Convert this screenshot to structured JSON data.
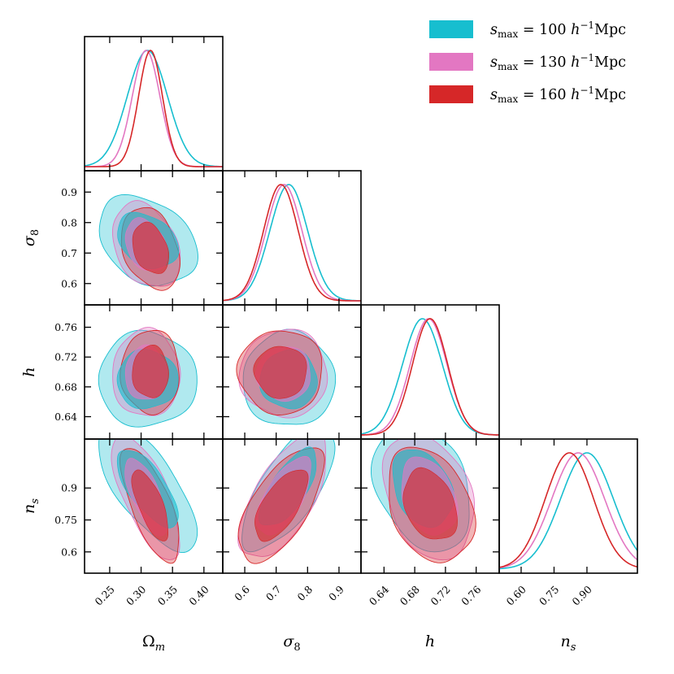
{
  "chart_data": {
    "type": "corner",
    "parameters": [
      {
        "key": "Om",
        "label": "Ωm",
        "label_parts": [
          "Ω",
          "m"
        ],
        "range": [
          0.21,
          0.43
        ],
        "ticks": [
          0.25,
          0.3,
          0.35,
          0.4
        ],
        "tick_labels": [
          "0.25",
          "0.30",
          "0.35",
          "0.40"
        ]
      },
      {
        "key": "s8",
        "label": "σ8",
        "label_parts": [
          "σ",
          "8"
        ],
        "range": [
          0.53,
          0.97
        ],
        "ticks": [
          0.6,
          0.7,
          0.8,
          0.9
        ],
        "tick_labels": [
          "0.6",
          "0.7",
          "0.8",
          "0.9"
        ]
      },
      {
        "key": "h",
        "label": "h",
        "label_parts": [
          "h",
          ""
        ],
        "range": [
          0.61,
          0.79
        ],
        "ticks": [
          0.64,
          0.68,
          0.72,
          0.76
        ],
        "tick_labels": [
          "0.64",
          "0.68",
          "0.72",
          "0.76"
        ]
      },
      {
        "key": "ns",
        "label": "ns",
        "label_parts": [
          "n",
          "s"
        ],
        "range": [
          0.5,
          1.13
        ],
        "ticks": [
          0.6,
          0.75,
          0.9
        ],
        "tick_labels": [
          "0.60",
          "0.75",
          "0.90"
        ],
        "tick_labels_y": [
          "0.6",
          "0.75",
          "0.9"
        ]
      }
    ],
    "series": [
      {
        "name": "s_max = 100 h^-1 Mpc",
        "legend_parts": [
          "s",
          "max",
          " = 100 ",
          "h",
          "−1",
          "Mpc"
        ],
        "color": "#17becf",
        "mean": {
          "Om": 0.31,
          "s8": 0.74,
          "h": 0.69,
          "ns": 0.9
        },
        "sigma": {
          "Om": 0.032,
          "s8": 0.06,
          "h": 0.026,
          "ns": 0.12
        },
        "corr": {
          "Om|s8": -0.3,
          "Om|h": 0.0,
          "s8|h": 0.0,
          "Om|ns": -0.7,
          "s8|ns": 0.7,
          "h|ns": -0.3
        }
      },
      {
        "name": "s_max = 130 h^-1 Mpc",
        "legend_parts": [
          "s",
          "max",
          " = 130 ",
          "h",
          "−1",
          "Mpc"
        ],
        "color": "#e377c2",
        "mean": {
          "Om": 0.308,
          "s8": 0.725,
          "h": 0.698,
          "ns": 0.86
        },
        "sigma": {
          "Om": 0.022,
          "s8": 0.057,
          "h": 0.024,
          "ns": 0.12
        },
        "corr": {
          "Om|s8": -0.3,
          "Om|h": 0.0,
          "s8|h": 0.0,
          "Om|ns": -0.7,
          "s8|ns": 0.65,
          "h|ns": -0.3
        }
      },
      {
        "name": "s_max = 160 h^-1 Mpc",
        "legend_parts": [
          "s",
          "max",
          " = 160 ",
          "h",
          "−1",
          "Mpc"
        ],
        "color": "#d62728",
        "mean": {
          "Om": 0.315,
          "s8": 0.715,
          "h": 0.7,
          "ns": 0.82
        },
        "sigma": {
          "Om": 0.019,
          "s8": 0.055,
          "h": 0.023,
          "ns": 0.11
        },
        "corr": {
          "Om|s8": -0.3,
          "Om|h": 0.0,
          "s8|h": 0.0,
          "Om|ns": -0.7,
          "s8|ns": 0.65,
          "h|ns": -0.3
        }
      }
    ],
    "legend_position": "top-right",
    "contour_levels": [
      "68%",
      "95%"
    ],
    "grid": false
  }
}
